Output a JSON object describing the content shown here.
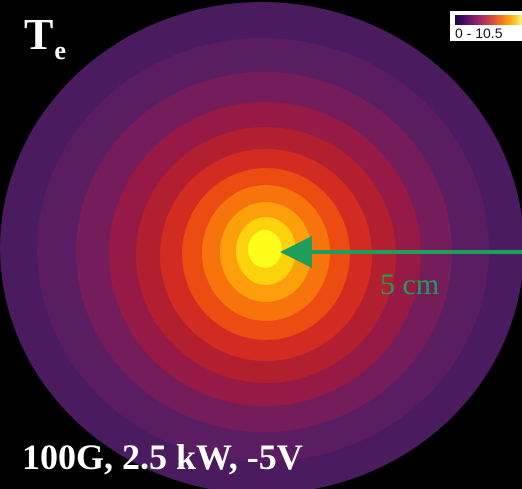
{
  "figure": {
    "quantity_symbol": "T",
    "quantity_subscript": "e",
    "conditions": "100G, 2.5 kW, -5V",
    "scale_bar_label": "5 cm",
    "colorbar": {
      "range_label": "0 - 10.5",
      "min": 0,
      "max": 10.5,
      "colormap_stops": [
        "#160b39",
        "#420a68",
        "#6a176e",
        "#932667",
        "#bc3754",
        "#dd513a",
        "#f37819",
        "#fca50a",
        "#f6d746",
        "#fcffa4"
      ]
    },
    "contour_level_colors": [
      "#4a1b5e",
      "#5a1d61",
      "#751d5a",
      "#961a45",
      "#b2202f",
      "#d12b22",
      "#ec4b12",
      "#f7730c",
      "#fc9f0a",
      "#fcd20c",
      "#fdfc1a"
    ],
    "scale_arrow_color": "#1f9d5c"
  }
}
